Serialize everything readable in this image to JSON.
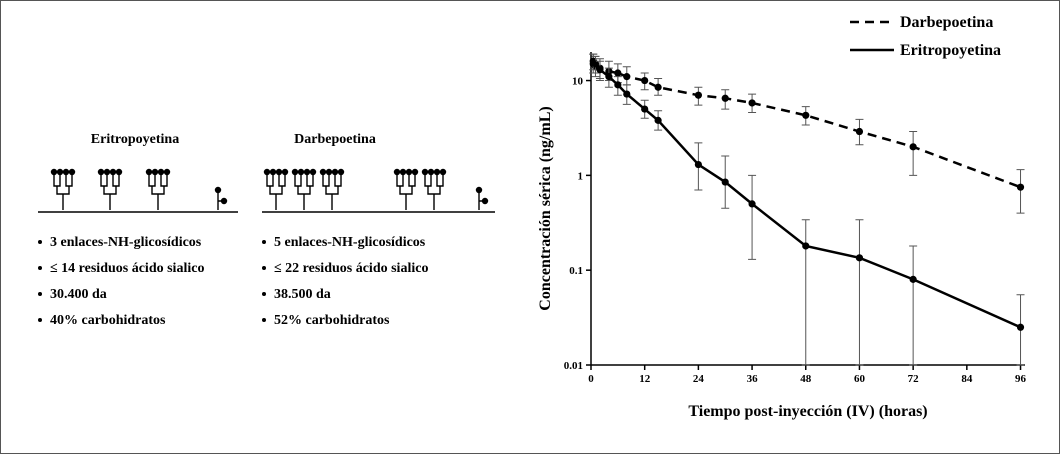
{
  "diagram": {
    "panels": [
      {
        "title": "Eritropoyetina",
        "bullets": [
          "3 enlaces-NH-glicosídicos",
          "≤ 14 residuos ácido sialico",
          "30.400 da",
          "40% carbohidratos"
        ]
      },
      {
        "title": "Darbepoetina",
        "bullets": [
          "5 enlaces-NH-glicosídicos",
          "≤ 22 residuos ácido sialico",
          "38.500 da",
          "52% carbohidratos"
        ]
      }
    ]
  },
  "chart_data": {
    "type": "line",
    "x_label": "Tiempo post-inyección (IV) (horas)",
    "y_label": "Concentración sérica (ng/mL)",
    "xlim": [
      0,
      97
    ],
    "xticks": [
      0,
      12,
      24,
      36,
      48,
      60,
      72,
      84,
      96
    ],
    "ylim": [
      0.01,
      20
    ],
    "yticks": [
      0.01,
      0.1,
      1,
      10
    ],
    "log_y": true,
    "legend": "top-right",
    "series": [
      {
        "name": "Darbepoetina",
        "color": "#000000",
        "dashed": true,
        "x": [
          0.5,
          1,
          2,
          4,
          6,
          8,
          12,
          15,
          24,
          30,
          36,
          48,
          60,
          72,
          96
        ],
        "values": [
          15,
          14,
          13.5,
          12.5,
          12,
          11,
          10,
          8.5,
          7,
          6.5,
          5.8,
          4.3,
          2.9,
          2,
          0.75
        ],
        "lower": [
          12,
          11,
          10.5,
          10,
          9.5,
          9,
          8,
          7,
          5.5,
          5,
          4.6,
          3.4,
          2.1,
          1,
          0.4
        ],
        "upper": [
          19,
          18,
          17,
          16,
          15,
          14,
          12,
          10.5,
          8.5,
          8,
          7.2,
          5.3,
          3.9,
          2.9,
          1.15
        ]
      },
      {
        "name": "Eritropoyetina",
        "color": "#000000",
        "dashed": false,
        "x": [
          0.5,
          1,
          2,
          4,
          6,
          8,
          12,
          15,
          24,
          30,
          36,
          48,
          60,
          72,
          96
        ],
        "values": [
          16,
          15,
          13,
          11,
          9,
          7.2,
          5,
          3.8,
          1.3,
          0.85,
          0.5,
          0.18,
          0.135,
          0.08,
          0.025
        ],
        "lower": [
          13,
          12,
          10,
          8.5,
          7,
          5.6,
          4,
          3,
          0.7,
          0.45,
          0.13,
          0.01,
          0.01,
          0.01,
          0.01
        ],
        "upper": [
          19,
          18,
          16,
          13.5,
          11,
          9,
          6.2,
          4.8,
          2.2,
          1.6,
          1,
          0.34,
          0.34,
          0.18,
          0.055
        ]
      }
    ]
  }
}
